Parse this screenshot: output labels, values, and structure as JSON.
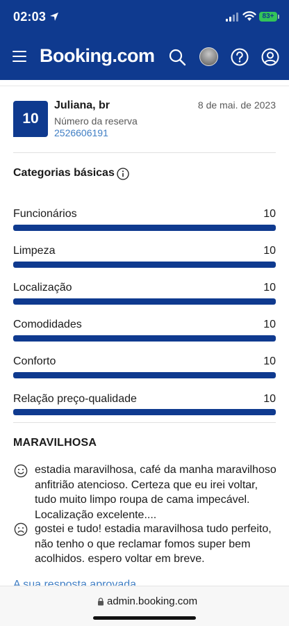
{
  "status_bar": {
    "time": "02:03",
    "battery": "83+"
  },
  "header": {
    "brand": "Booking.com",
    "icons": [
      "menu-icon",
      "search-icon",
      "avatar",
      "help-icon",
      "account-icon"
    ]
  },
  "review": {
    "score": "10",
    "reviewer": "Juliana, br",
    "date": "8 de mai. de 2023",
    "reservation_label": "Número da reserva",
    "reservation_number": "2526606191"
  },
  "categories_section": {
    "title": "Categorias básicas",
    "items": [
      {
        "label": "Funcionários",
        "value": "10",
        "fill_fraction": 1.0
      },
      {
        "label": "Limpeza",
        "value": "10",
        "fill_fraction": 1.0
      },
      {
        "label": "Localização",
        "value": "10",
        "fill_fraction": 1.0
      },
      {
        "label": "Comodidades",
        "value": "10",
        "fill_fraction": 1.0
      },
      {
        "label": "Conforto",
        "value": "10",
        "fill_fraction": 1.0
      },
      {
        "label": "Relação preço-qualidade",
        "value": "10",
        "fill_fraction": 1.0
      }
    ]
  },
  "review_body": {
    "headline": "MARAVILHOSA",
    "positive": "estadia maravilhosa, café da manha maravilhoso anfitrião atencioso. Certeza que eu irei voltar, tudo muito limpo roupa de cama impecável. Localização excelente....",
    "negative": "gostei e tudo! estadia maravilhosa tudo perfeito, não tenho o que reclamar fomos super bem acolhidos. espero voltar em breve.",
    "reply_link": "A sua resposta aprovada"
  },
  "browser": {
    "url": "admin.booking.com"
  },
  "colors": {
    "brand_blue": "#0f3a8f",
    "link_blue": "#3f7ec4",
    "battery_green": "#33c459"
  }
}
